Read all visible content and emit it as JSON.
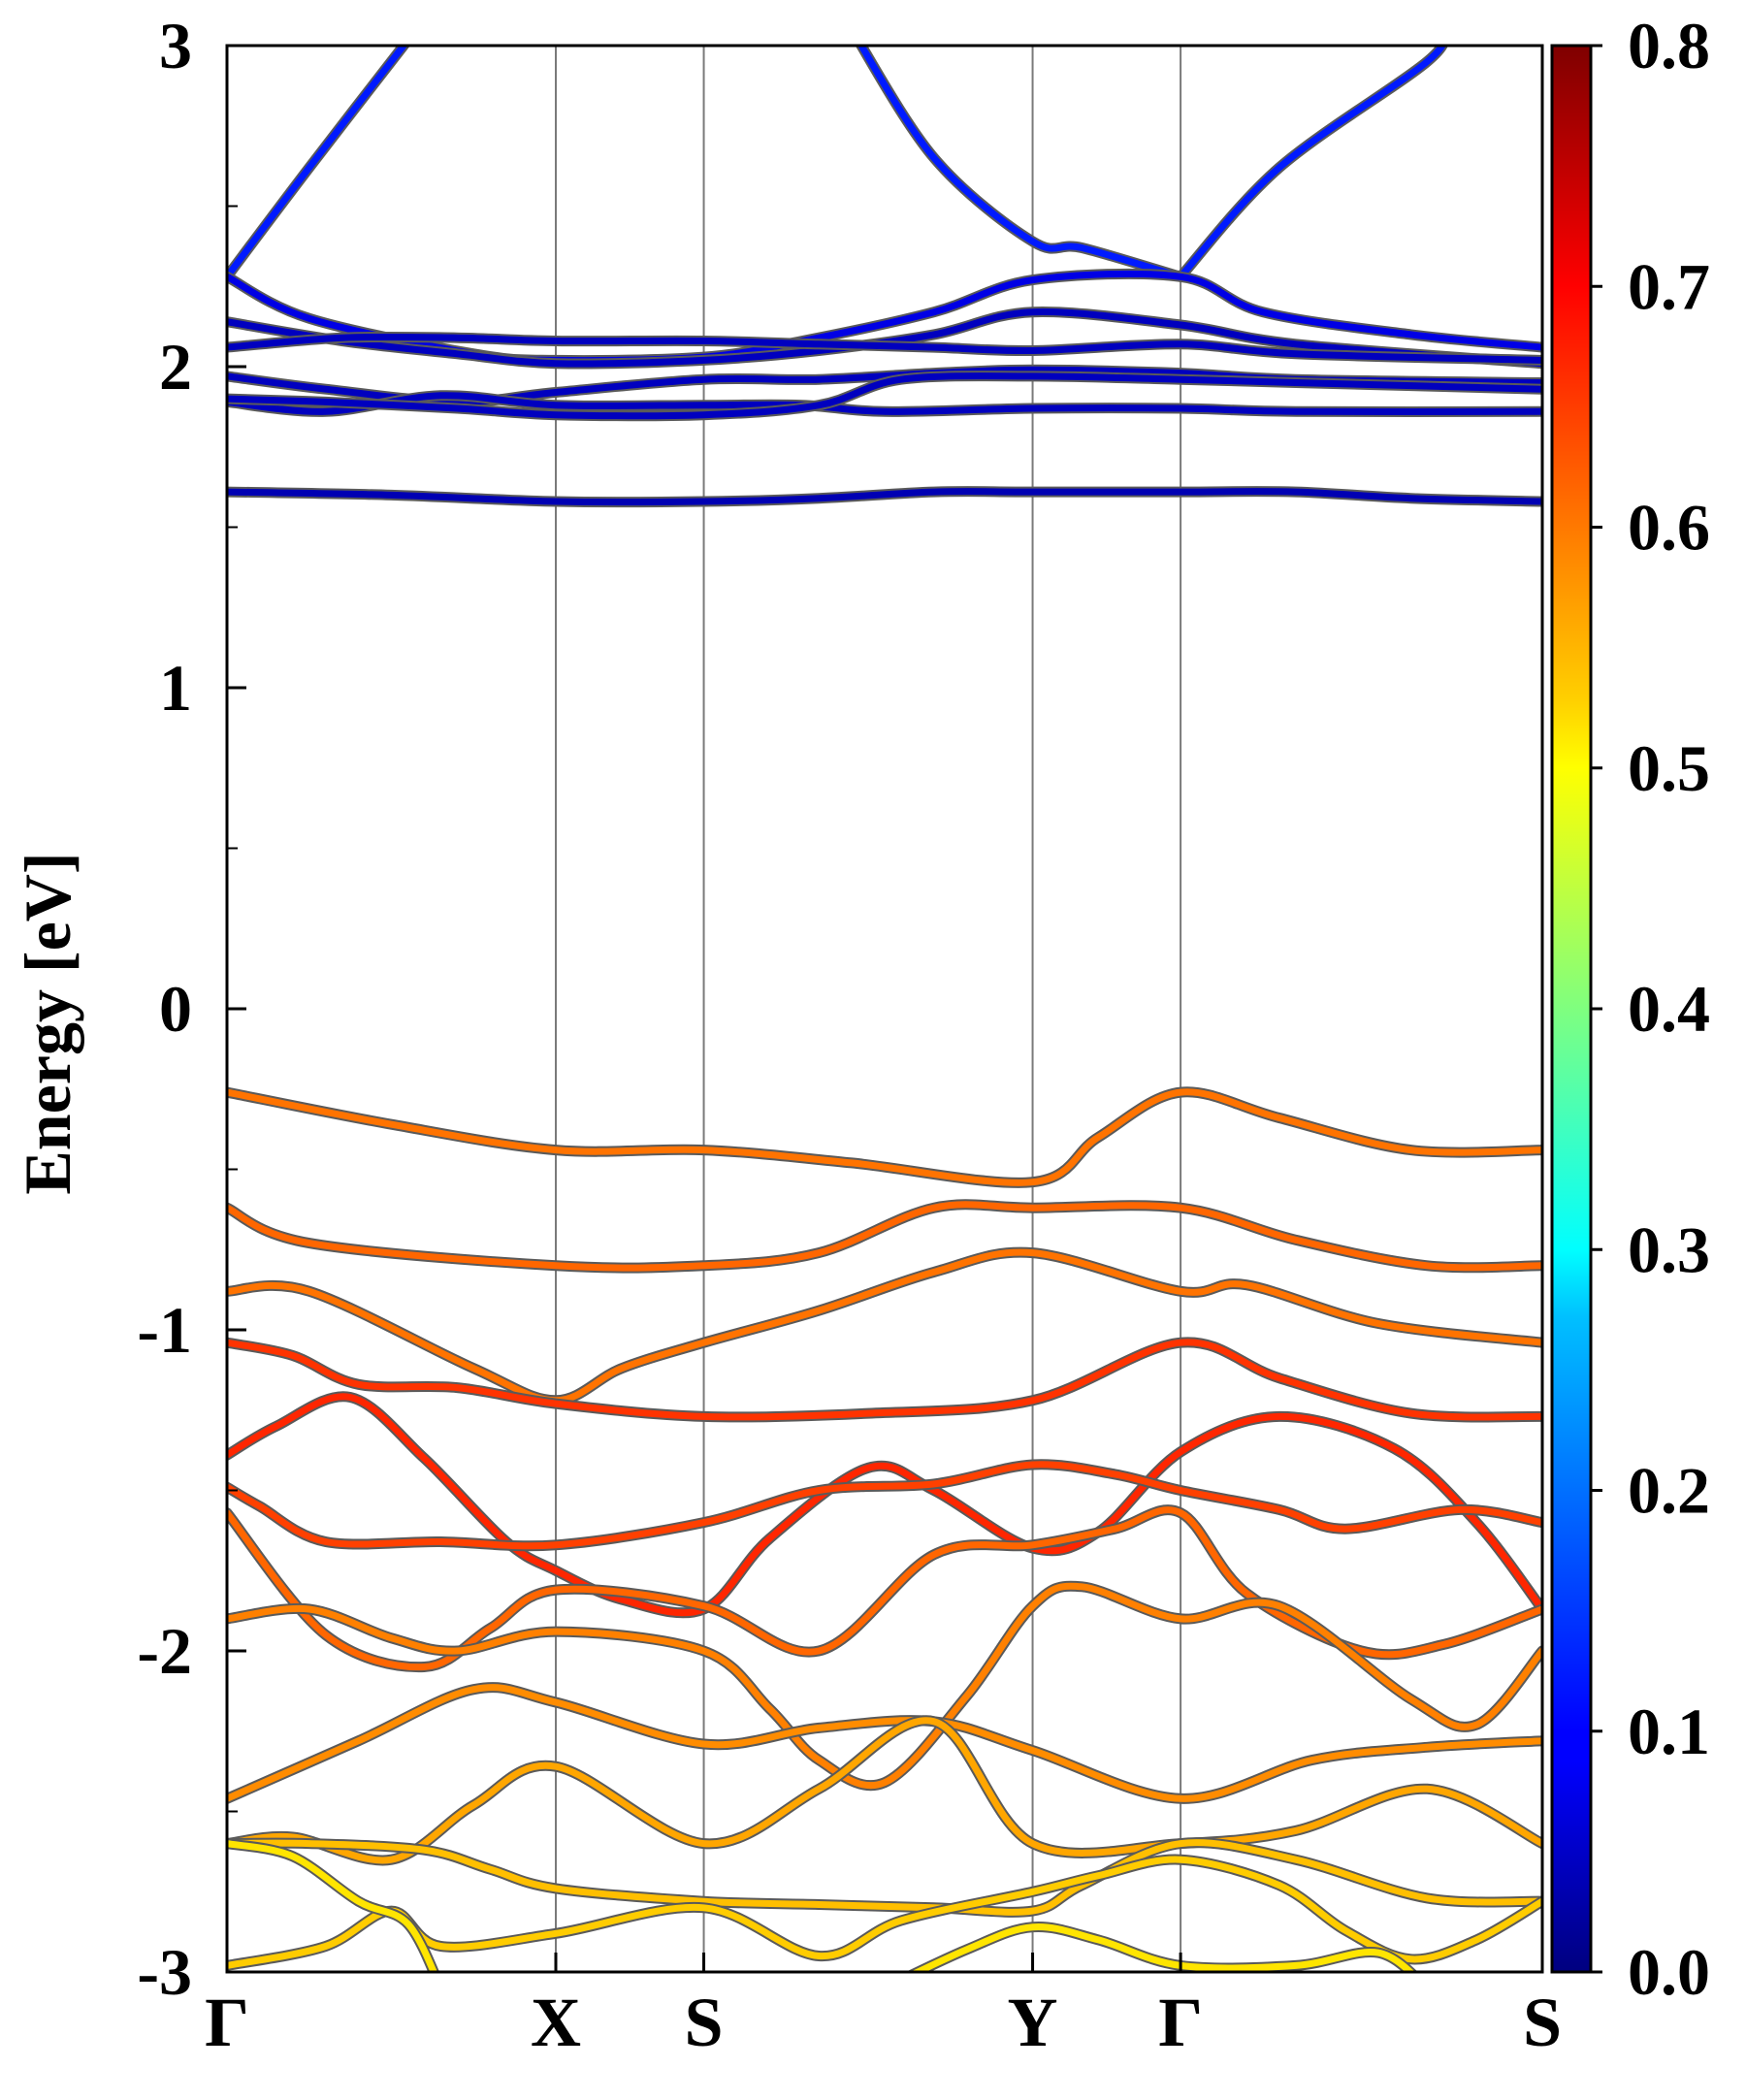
{
  "chart_data": {
    "type": "line",
    "title": "",
    "xlabel": "",
    "ylabel": "Energy [eV]",
    "ylim": [
      -3,
      3
    ],
    "xlim": [
      0,
      8
    ],
    "grid": false,
    "y_major_ticks": [
      -3,
      -2,
      -1,
      0,
      1,
      2,
      3
    ],
    "y_tick_labels": [
      "-3",
      "-2",
      "-1",
      "0",
      "1",
      "2",
      "3"
    ],
    "y_minor_ticks": [
      -2.5,
      -1.5,
      -0.5,
      0.5,
      1.5,
      2.5
    ],
    "k_points": [
      {
        "label": "Γ",
        "x": 0
      },
      {
        "label": "X",
        "x": 2
      },
      {
        "label": "S",
        "x": 2.9
      },
      {
        "label": "Y",
        "x": 4.9
      },
      {
        "label": "Γ",
        "x": 5.8
      },
      {
        "label": "S",
        "x": 8
      }
    ],
    "colorbar": {
      "colormap": "jet",
      "min": 0.0,
      "max": 0.8,
      "ticks": [
        0.0,
        0.1,
        0.2,
        0.3,
        0.4,
        0.5,
        0.6,
        0.7,
        0.8
      ],
      "tick_labels": [
        "0.0",
        "0.1",
        "0.2",
        "0.3",
        "0.4",
        "0.5",
        "0.6",
        "0.7",
        "0.8"
      ]
    },
    "series": [
      {
        "name": "cb-upper-1",
        "weight": 0.12,
        "points": [
          [
            0,
            2.28
          ],
          [
            0.5,
            2.62
          ],
          [
            1.15,
            3.05
          ]
        ]
      },
      {
        "name": "cb-upper-2",
        "weight": 0.12,
        "points": [
          [
            3.8,
            3.05
          ],
          [
            4.3,
            2.65
          ],
          [
            4.9,
            2.39
          ],
          [
            5.2,
            2.37
          ],
          [
            5.8,
            2.28
          ]
        ]
      },
      {
        "name": "cb-upper-3",
        "weight": 0.12,
        "points": [
          [
            5.8,
            2.28
          ],
          [
            6.4,
            2.62
          ],
          [
            7.3,
            2.95
          ],
          [
            7.4,
            3.05
          ]
        ]
      },
      {
        "name": "cb-1",
        "weight": 0.08,
        "points": [
          [
            0,
            2.28
          ],
          [
            0.5,
            2.15
          ],
          [
            1.5,
            2.04
          ],
          [
            2,
            2.02
          ],
          [
            2.9,
            2.03
          ],
          [
            3.5,
            2.08
          ],
          [
            4.3,
            2.17
          ],
          [
            4.9,
            2.27
          ],
          [
            5.8,
            2.28
          ],
          [
            6.3,
            2.17
          ],
          [
            7.2,
            2.1
          ],
          [
            8,
            2.06
          ]
        ]
      },
      {
        "name": "cb-2",
        "weight": 0.05,
        "points": [
          [
            0,
            2.14
          ],
          [
            0.7,
            2.08
          ],
          [
            1.4,
            2.04
          ],
          [
            2,
            2.01
          ],
          [
            2.9,
            2.02
          ],
          [
            3.6,
            2.05
          ],
          [
            4.3,
            2.1
          ],
          [
            4.9,
            2.17
          ],
          [
            5.8,
            2.13
          ],
          [
            6.5,
            2.07
          ],
          [
            8,
            2.01
          ]
        ]
      },
      {
        "name": "cb-3",
        "weight": 0.05,
        "points": [
          [
            0,
            2.06
          ],
          [
            0.7,
            2.09
          ],
          [
            1.4,
            2.09
          ],
          [
            2,
            2.08
          ],
          [
            2.9,
            2.08
          ],
          [
            3.6,
            2.07
          ],
          [
            4.3,
            2.06
          ],
          [
            4.9,
            2.05
          ],
          [
            5.8,
            2.07
          ],
          [
            6.5,
            2.04
          ],
          [
            8,
            2.02
          ]
        ]
      },
      {
        "name": "cb-4",
        "weight": 0.05,
        "points": [
          [
            0,
            1.97
          ],
          [
            0.6,
            1.93
          ],
          [
            1.4,
            1.89
          ],
          [
            2,
            1.92
          ],
          [
            2.9,
            1.96
          ],
          [
            3.6,
            1.96
          ],
          [
            4.3,
            1.98
          ],
          [
            4.9,
            1.99
          ],
          [
            5.8,
            1.98
          ],
          [
            6.5,
            1.96
          ],
          [
            8,
            1.95
          ]
        ]
      },
      {
        "name": "cb-5",
        "weight": 0.05,
        "points": [
          [
            0,
            1.89
          ],
          [
            0.6,
            1.86
          ],
          [
            1.3,
            1.91
          ],
          [
            2,
            1.88
          ],
          [
            2.9,
            1.88
          ],
          [
            3.5,
            1.88
          ],
          [
            4.0,
            1.86
          ],
          [
            4.9,
            1.87
          ],
          [
            5.8,
            1.87
          ],
          [
            6.5,
            1.86
          ],
          [
            8,
            1.86
          ]
        ]
      },
      {
        "name": "cb-6",
        "weight": 0.05,
        "points": [
          [
            0,
            1.9
          ],
          [
            0.6,
            1.89
          ],
          [
            1.4,
            1.87
          ],
          [
            2,
            1.85
          ],
          [
            2.9,
            1.85
          ],
          [
            3.6,
            1.88
          ],
          [
            4.1,
            1.96
          ],
          [
            4.9,
            1.97
          ],
          [
            5.8,
            1.96
          ],
          [
            6.5,
            1.95
          ],
          [
            8,
            1.93
          ]
        ]
      },
      {
        "name": "cb-7",
        "weight": 0.04,
        "points": [
          [
            0,
            1.61
          ],
          [
            1.0,
            1.6
          ],
          [
            2,
            1.58
          ],
          [
            2.9,
            1.58
          ],
          [
            3.6,
            1.59
          ],
          [
            4.3,
            1.61
          ],
          [
            4.9,
            1.61
          ],
          [
            5.8,
            1.61
          ],
          [
            6.5,
            1.61
          ],
          [
            7.2,
            1.59
          ],
          [
            8,
            1.58
          ]
        ]
      },
      {
        "name": "vb-1",
        "weight": 0.61,
        "points": [
          [
            0,
            -0.26
          ],
          [
            1.0,
            -0.36
          ],
          [
            2,
            -0.44
          ],
          [
            2.9,
            -0.44
          ],
          [
            3.8,
            -0.48
          ],
          [
            4.9,
            -0.54
          ],
          [
            5.3,
            -0.4
          ],
          [
            5.8,
            -0.26
          ],
          [
            6.4,
            -0.34
          ],
          [
            7.2,
            -0.44
          ],
          [
            8,
            -0.44
          ]
        ]
      },
      {
        "name": "vb-2",
        "weight": 0.62,
        "points": [
          [
            0,
            -0.62
          ],
          [
            0.5,
            -0.73
          ],
          [
            2,
            -0.8
          ],
          [
            2.9,
            -0.8
          ],
          [
            3.6,
            -0.76
          ],
          [
            4.3,
            -0.62
          ],
          [
            4.9,
            -0.62
          ],
          [
            5.8,
            -0.62
          ],
          [
            6.5,
            -0.72
          ],
          [
            7.3,
            -0.8
          ],
          [
            8,
            -0.8
          ]
        ]
      },
      {
        "name": "vb-3",
        "weight": 0.61,
        "points": [
          [
            0,
            -0.88
          ],
          [
            0.5,
            -0.88
          ],
          [
            1.5,
            -1.12
          ],
          [
            2,
            -1.22
          ],
          [
            2.4,
            -1.12
          ],
          [
            2.9,
            -1.04
          ],
          [
            3.6,
            -0.94
          ],
          [
            4.3,
            -0.82
          ],
          [
            4.9,
            -0.76
          ],
          [
            5.8,
            -0.88
          ],
          [
            6.2,
            -0.86
          ],
          [
            7,
            -0.98
          ],
          [
            8,
            -1.04
          ]
        ]
      },
      {
        "name": "vb-4",
        "weight": 0.66,
        "points": [
          [
            0,
            -1.04
          ],
          [
            0.4,
            -1.08
          ],
          [
            0.8,
            -1.17
          ],
          [
            1.4,
            -1.18
          ],
          [
            2,
            -1.23
          ],
          [
            2.9,
            -1.27
          ],
          [
            3.9,
            -1.26
          ],
          [
            4.9,
            -1.22
          ],
          [
            5.8,
            -1.04
          ],
          [
            6.4,
            -1.15
          ],
          [
            7.2,
            -1.26
          ],
          [
            8,
            -1.27
          ]
        ]
      },
      {
        "name": "vb-5",
        "weight": 0.67,
        "points": [
          [
            0,
            -1.39
          ],
          [
            0.3,
            -1.3
          ],
          [
            0.75,
            -1.21
          ],
          [
            1.2,
            -1.4
          ],
          [
            1.7,
            -1.66
          ],
          [
            2,
            -1.75
          ],
          [
            2.4,
            -1.84
          ],
          [
            2.9,
            -1.87
          ],
          [
            3.3,
            -1.65
          ],
          [
            3.9,
            -1.43
          ],
          [
            4.3,
            -1.5
          ],
          [
            4.9,
            -1.68
          ],
          [
            5.3,
            -1.63
          ],
          [
            5.8,
            -1.38
          ],
          [
            6.4,
            -1.27
          ],
          [
            7.1,
            -1.37
          ],
          [
            7.6,
            -1.6
          ],
          [
            8,
            -1.87
          ]
        ]
      },
      {
        "name": "vb-6",
        "weight": 0.65,
        "points": [
          [
            0,
            -1.49
          ],
          [
            0.2,
            -1.55
          ],
          [
            0.6,
            -1.66
          ],
          [
            1.3,
            -1.66
          ],
          [
            2,
            -1.67
          ],
          [
            2.9,
            -1.6
          ],
          [
            3.6,
            -1.5
          ],
          [
            4.3,
            -1.48
          ],
          [
            4.9,
            -1.42
          ],
          [
            5.4,
            -1.45
          ],
          [
            5.8,
            -1.5
          ],
          [
            6.4,
            -1.56
          ],
          [
            6.8,
            -1.62
          ],
          [
            7.5,
            -1.56
          ],
          [
            8,
            -1.6
          ]
        ]
      },
      {
        "name": "vb-7",
        "weight": 0.62,
        "points": [
          [
            0,
            -1.57
          ],
          [
            0.6,
            -1.95
          ],
          [
            1.2,
            -2.05
          ],
          [
            1.6,
            -1.93
          ],
          [
            2,
            -1.81
          ],
          [
            2.9,
            -1.86
          ],
          [
            3.6,
            -2.0
          ],
          [
            4.3,
            -1.7
          ],
          [
            4.9,
            -1.67
          ],
          [
            5.4,
            -1.62
          ],
          [
            5.8,
            -1.57
          ],
          [
            6.2,
            -1.82
          ],
          [
            6.9,
            -2.0
          ],
          [
            7.4,
            -1.98
          ],
          [
            8,
            -1.87
          ]
        ]
      },
      {
        "name": "vb-8",
        "weight": 0.6,
        "points": [
          [
            0,
            -1.9
          ],
          [
            0.5,
            -1.87
          ],
          [
            1,
            -1.96
          ],
          [
            1.4,
            -2.0
          ],
          [
            2,
            -1.94
          ],
          [
            2.9,
            -2.0
          ],
          [
            3.3,
            -2.18
          ],
          [
            3.6,
            -2.34
          ],
          [
            4.0,
            -2.41
          ],
          [
            4.5,
            -2.14
          ],
          [
            4.9,
            -1.86
          ],
          [
            5.2,
            -1.8
          ],
          [
            5.8,
            -1.9
          ],
          [
            6.4,
            -1.86
          ],
          [
            7.2,
            -2.15
          ],
          [
            7.6,
            -2.23
          ],
          [
            8,
            -2.0
          ]
        ]
      },
      {
        "name": "vb-9",
        "weight": 0.59,
        "points": [
          [
            0,
            -2.46
          ],
          [
            0.8,
            -2.28
          ],
          [
            1.5,
            -2.12
          ],
          [
            2,
            -2.16
          ],
          [
            2.9,
            -2.29
          ],
          [
            3.6,
            -2.24
          ],
          [
            4.3,
            -2.22
          ],
          [
            4.9,
            -2.31
          ],
          [
            5.8,
            -2.46
          ],
          [
            6.6,
            -2.34
          ],
          [
            7.3,
            -2.3
          ],
          [
            8,
            -2.28
          ]
        ]
      },
      {
        "name": "vb-10",
        "weight": 0.57,
        "points": [
          [
            0,
            -2.6
          ],
          [
            0.4,
            -2.58
          ],
          [
            1.0,
            -2.65
          ],
          [
            1.5,
            -2.48
          ],
          [
            2,
            -2.36
          ],
          [
            2.9,
            -2.6
          ],
          [
            3.6,
            -2.43
          ],
          [
            4.3,
            -2.22
          ],
          [
            4.9,
            -2.6
          ],
          [
            5.8,
            -2.6
          ],
          [
            6.5,
            -2.56
          ],
          [
            7.3,
            -2.43
          ],
          [
            8,
            -2.6
          ]
        ]
      },
      {
        "name": "vb-11",
        "weight": 0.55,
        "points": [
          [
            0,
            -2.6
          ],
          [
            0.5,
            -2.6
          ],
          [
            1.2,
            -2.62
          ],
          [
            1.6,
            -2.68
          ],
          [
            2,
            -2.74
          ],
          [
            2.9,
            -2.78
          ],
          [
            3.6,
            -2.79
          ],
          [
            4.3,
            -2.8
          ],
          [
            4.9,
            -2.81
          ],
          [
            5.2,
            -2.73
          ],
          [
            5.8,
            -2.6
          ],
          [
            6.5,
            -2.65
          ],
          [
            7.3,
            -2.77
          ],
          [
            8,
            -2.78
          ]
        ]
      },
      {
        "name": "vb-12",
        "weight": 0.54,
        "points": [
          [
            0,
            -2.98
          ],
          [
            0.6,
            -2.92
          ],
          [
            1.0,
            -2.81
          ],
          [
            1.3,
            -2.92
          ],
          [
            2,
            -2.88
          ],
          [
            2.9,
            -2.8
          ],
          [
            3.6,
            -2.95
          ],
          [
            4.1,
            -2.84
          ],
          [
            4.9,
            -2.75
          ],
          [
            5.3,
            -2.7
          ],
          [
            5.8,
            -2.65
          ],
          [
            6.4,
            -2.73
          ],
          [
            6.8,
            -2.87
          ],
          [
            7.2,
            -2.96
          ],
          [
            7.6,
            -2.9
          ],
          [
            8,
            -2.78
          ]
        ]
      },
      {
        "name": "vb-13",
        "weight": 0.52,
        "points": [
          [
            0,
            -2.6
          ],
          [
            0.4,
            -2.64
          ],
          [
            0.8,
            -2.78
          ],
          [
            1.1,
            -2.85
          ],
          [
            1.3,
            -3.05
          ]
        ]
      },
      {
        "name": "vb-14",
        "weight": 0.52,
        "points": [
          [
            4.0,
            -3.05
          ],
          [
            4.5,
            -2.93
          ],
          [
            4.9,
            -2.86
          ],
          [
            5.3,
            -2.9
          ],
          [
            5.8,
            -2.98
          ],
          [
            6.5,
            -2.98
          ],
          [
            7.0,
            -2.94
          ],
          [
            7.3,
            -3.05
          ]
        ]
      }
    ]
  }
}
